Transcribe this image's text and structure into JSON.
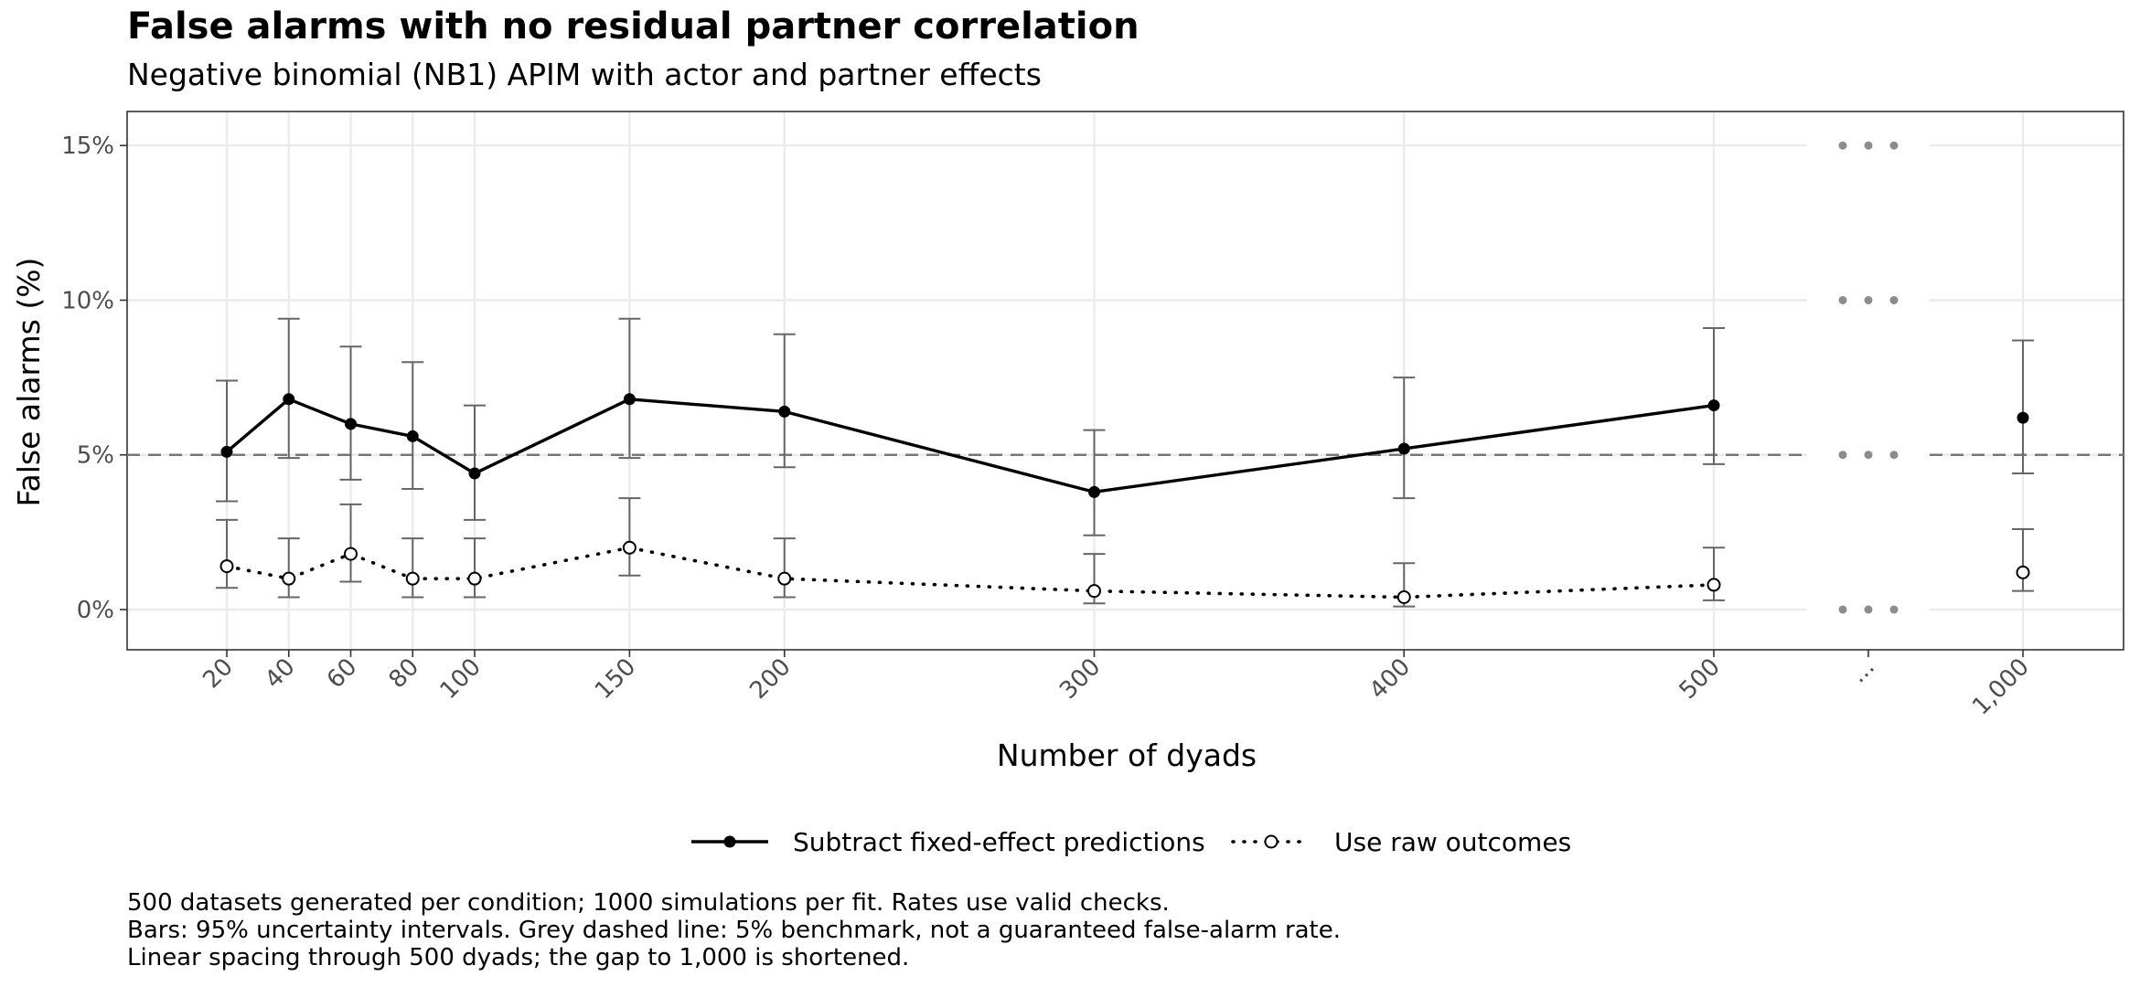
{
  "chart_data": {
    "type": "line",
    "title": "False alarms with no residual partner correlation",
    "subtitle": "Negative binomial (NB1) APIM with actor and partner effects",
    "xlabel": "Number of dyads",
    "ylabel": "False alarms (%)",
    "ylim": [
      -1.3,
      16.1
    ],
    "y_ticks": [
      0,
      5,
      10,
      15
    ],
    "y_tick_labels": [
      "0%",
      "5%",
      "10%",
      "15%"
    ],
    "x_tick_labels": [
      "20",
      "40",
      "60",
      "80",
      "100",
      "150",
      "200",
      "300",
      "400",
      "500",
      "...",
      "1,000"
    ],
    "categories": [
      20,
      40,
      60,
      80,
      100,
      150,
      200,
      300,
      400,
      500,
      1000
    ],
    "benchmark": 5,
    "grid": true,
    "legend_position": "bottom",
    "series": [
      {
        "name": "Subtract fixed-effect predictions",
        "line_style": "solid",
        "marker": "filled-circle",
        "values": [
          5.1,
          6.8,
          6.0,
          5.6,
          4.4,
          6.8,
          6.4,
          3.8,
          5.2,
          6.6,
          6.2
        ],
        "lower": [
          3.5,
          4.9,
          4.2,
          3.9,
          2.9,
          4.9,
          4.6,
          2.4,
          3.6,
          4.7,
          4.4
        ],
        "upper": [
          7.4,
          9.4,
          8.5,
          8.0,
          6.6,
          9.4,
          8.9,
          5.8,
          7.5,
          9.1,
          8.7
        ]
      },
      {
        "name": "Use raw outcomes",
        "line_style": "dotted",
        "marker": "open-circle",
        "values": [
          1.4,
          1.0,
          1.8,
          1.0,
          1.0,
          2.0,
          1.0,
          0.6,
          0.4,
          0.8,
          1.2
        ],
        "lower": [
          0.7,
          0.4,
          0.9,
          0.4,
          0.4,
          1.1,
          0.4,
          0.2,
          0.1,
          0.3,
          0.6
        ],
        "upper": [
          2.9,
          2.3,
          3.4,
          2.3,
          2.3,
          3.6,
          2.3,
          1.8,
          1.5,
          2.0,
          2.6
        ]
      }
    ],
    "caption": [
      "500 datasets generated per condition; 1000 simulations per fit. Rates use valid checks.",
      "Bars: 95% uncertainty intervals. Grey dashed line: 5% benchmark, not a guaranteed false-alarm rate.",
      "Linear spacing through 500 dyads; the gap to 1,000 is shortened."
    ],
    "colors": {
      "line": "#000000",
      "errorbar": "#666666",
      "benchmark": "#777777",
      "grid": "#ebebeb",
      "panel_border": "#333333",
      "axis_text": "#4d4d4d"
    }
  }
}
